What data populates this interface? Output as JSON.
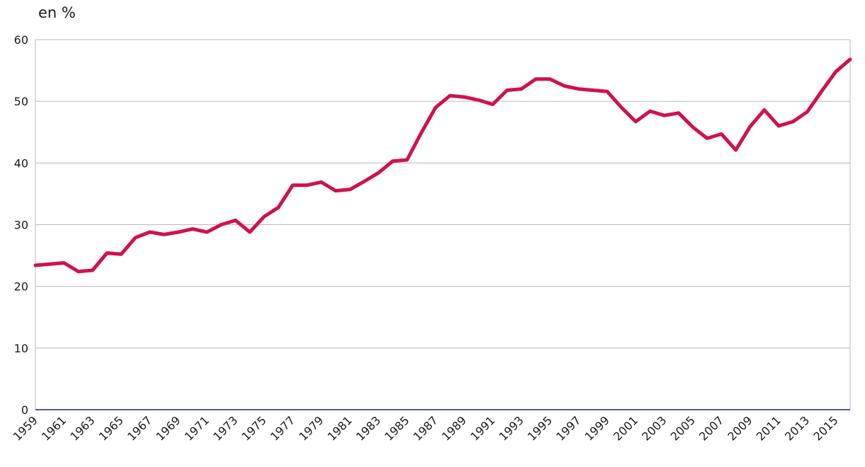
{
  "unit_label": "en %",
  "colors": {
    "line": "#d0114f",
    "grid": "#b9b9b9",
    "baseline": "#1a237e",
    "frame": "#b9b9b9"
  },
  "chart_data": {
    "type": "line",
    "title": "",
    "xlabel": "",
    "ylabel": "en %",
    "xlim": [
      1959,
      2016
    ],
    "ylim": [
      0,
      60
    ],
    "grid": true,
    "yticks": [
      0,
      10,
      20,
      30,
      40,
      50,
      60
    ],
    "xticks": [
      1959,
      1961,
      1963,
      1965,
      1967,
      1969,
      1971,
      1973,
      1975,
      1977,
      1979,
      1981,
      1983,
      1985,
      1987,
      1989,
      1991,
      1993,
      1995,
      1997,
      1999,
      2001,
      2003,
      2005,
      2007,
      2009,
      2011,
      2013,
      2015
    ],
    "series": [
      {
        "x": [
          1959,
          1960,
          1961,
          1962,
          1963,
          1964,
          1965,
          1966,
          1967,
          1968,
          1969,
          1970,
          1971,
          1972,
          1973,
          1974,
          1975,
          1976,
          1977,
          1978,
          1979,
          1980,
          1981,
          1982,
          1983,
          1984,
          1985,
          1986,
          1987,
          1988,
          1989,
          1990,
          1991,
          1992,
          1993,
          1994,
          1995,
          1996,
          1997,
          1998,
          1999,
          2000,
          2001,
          2002,
          2003,
          2004,
          2005,
          2006,
          2007,
          2008,
          2009,
          2010,
          2011,
          2012,
          2013,
          2014,
          2015,
          2016
        ],
        "y": [
          23.4,
          23.6,
          23.8,
          22.4,
          22.6,
          25.4,
          25.2,
          27.9,
          28.8,
          28.4,
          28.8,
          29.3,
          28.8,
          30.0,
          30.7,
          28.8,
          31.3,
          32.8,
          36.4,
          36.4,
          36.9,
          35.5,
          35.7,
          37.0,
          38.4,
          40.3,
          40.5,
          44.9,
          49.0,
          50.9,
          50.7,
          50.2,
          49.5,
          51.8,
          52.0,
          53.6,
          53.6,
          52.5,
          52.0,
          51.8,
          51.6,
          49.0,
          46.7,
          48.4,
          47.7,
          48.1,
          45.8,
          44.0,
          44.7,
          42.1,
          45.9,
          48.6,
          46.0,
          46.7,
          48.3,
          51.6,
          54.8,
          56.8
        ]
      }
    ]
  }
}
